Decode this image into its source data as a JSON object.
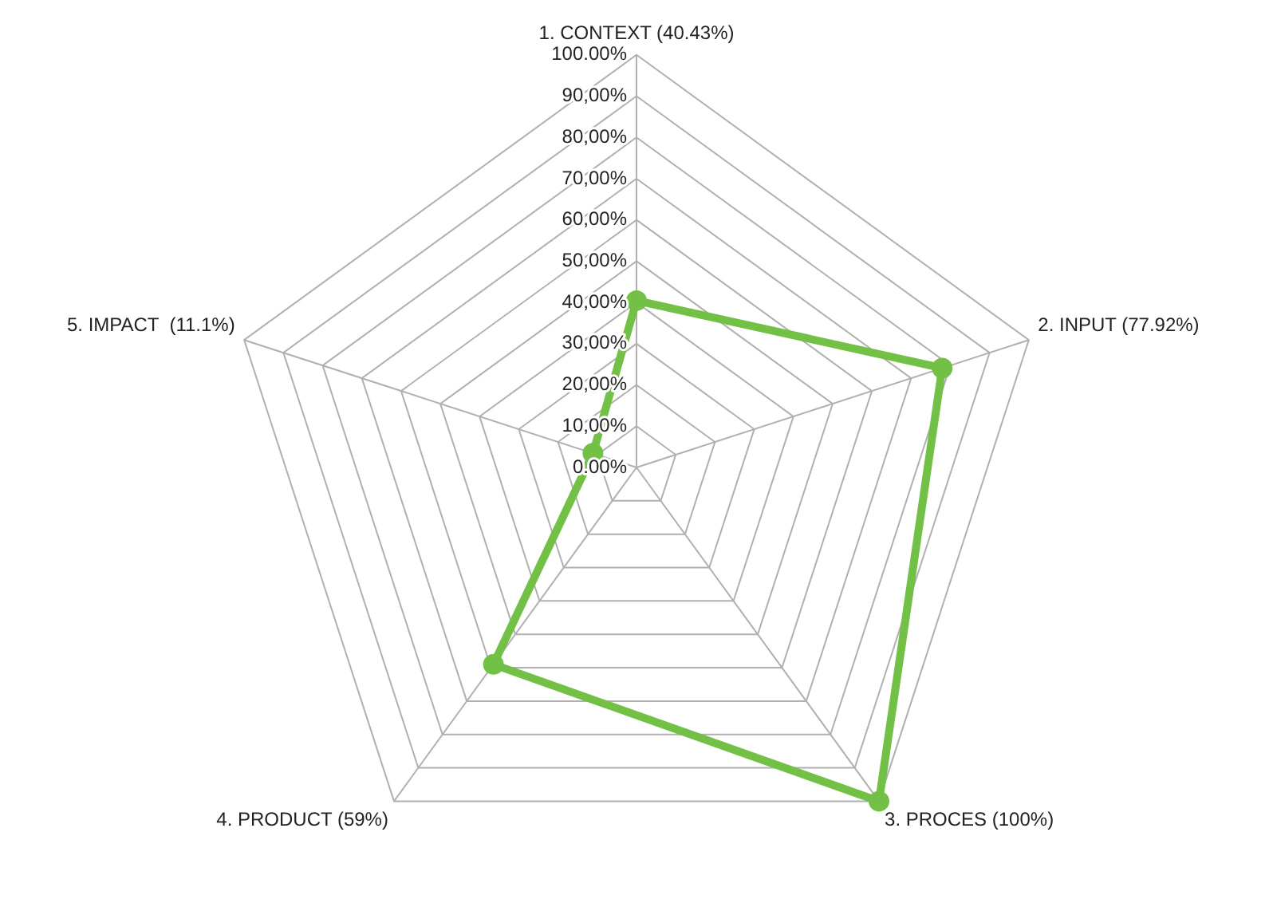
{
  "chart_data": {
    "type": "radar",
    "categories": [
      "1. CONTEXT (40.43%)",
      "2. INPUT (77.92%)",
      "3. PROCES (100%)",
      "4. PRODUCT (59%)",
      "5. IMPACT  (11.1%)"
    ],
    "series": [
      {
        "color": "#72c045",
        "values": [
          40.43,
          77.92,
          100,
          59,
          11.1
        ]
      }
    ],
    "ylim": [
      0,
      100
    ],
    "yticks": [
      {
        "value": 0,
        "label": "0.00%"
      },
      {
        "value": 10,
        "label": "10,00%"
      },
      {
        "value": 20,
        "label": "20,00%"
      },
      {
        "value": 30,
        "label": "30,00%"
      },
      {
        "value": 40,
        "label": "40,00%"
      },
      {
        "value": 50,
        "label": "50,00%"
      },
      {
        "value": 60,
        "label": "60,00%"
      },
      {
        "value": 70,
        "label": "70,00%"
      },
      {
        "value": 80,
        "label": "80,00%"
      },
      {
        "value": 90,
        "label": "90,00%"
      },
      {
        "value": 100,
        "label": "100.00%"
      }
    ],
    "grid": true,
    "legend": false,
    "marker": "circle"
  }
}
